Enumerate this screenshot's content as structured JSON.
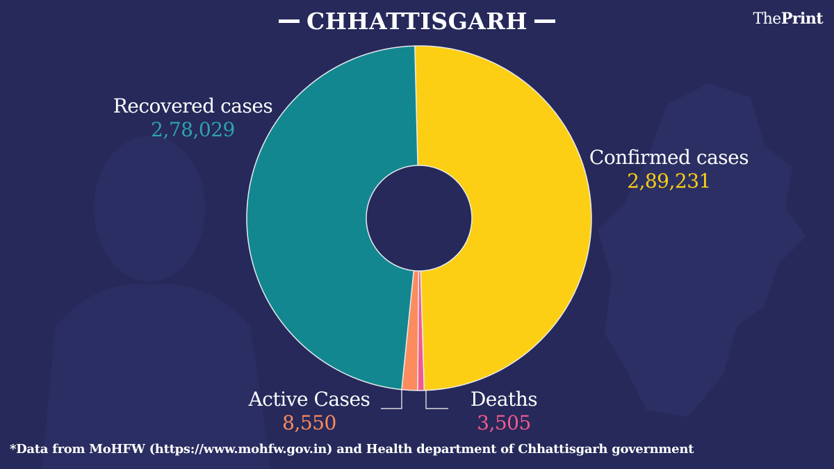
{
  "title": "CHHATTISGARH",
  "brand": {
    "prefix": "The",
    "name": "Print"
  },
  "footnote": "*Data from MoHFW (https://www.mohfw.gov.in) and Health department of Chhattisgarh government",
  "colors": {
    "background": "#26295a",
    "confirmed": "#fccf14",
    "recovered": "#138790",
    "active": "#fc8b5e",
    "deaths": "#f25a8d"
  },
  "chart_data": {
    "type": "pie",
    "title": "CHHATTISGARH",
    "slices": [
      {
        "key": "confirmed",
        "label": "Confirmed cases",
        "display": "2,89,231",
        "value": 289231
      },
      {
        "key": "deaths",
        "label": "Deaths",
        "display": "3,505",
        "value": 3505
      },
      {
        "key": "active",
        "label": "Active Cases",
        "display": "8,550",
        "value": 8550
      },
      {
        "key": "recovered",
        "label": "Recovered cases",
        "display": "2,78,029",
        "value": 278029
      }
    ]
  }
}
